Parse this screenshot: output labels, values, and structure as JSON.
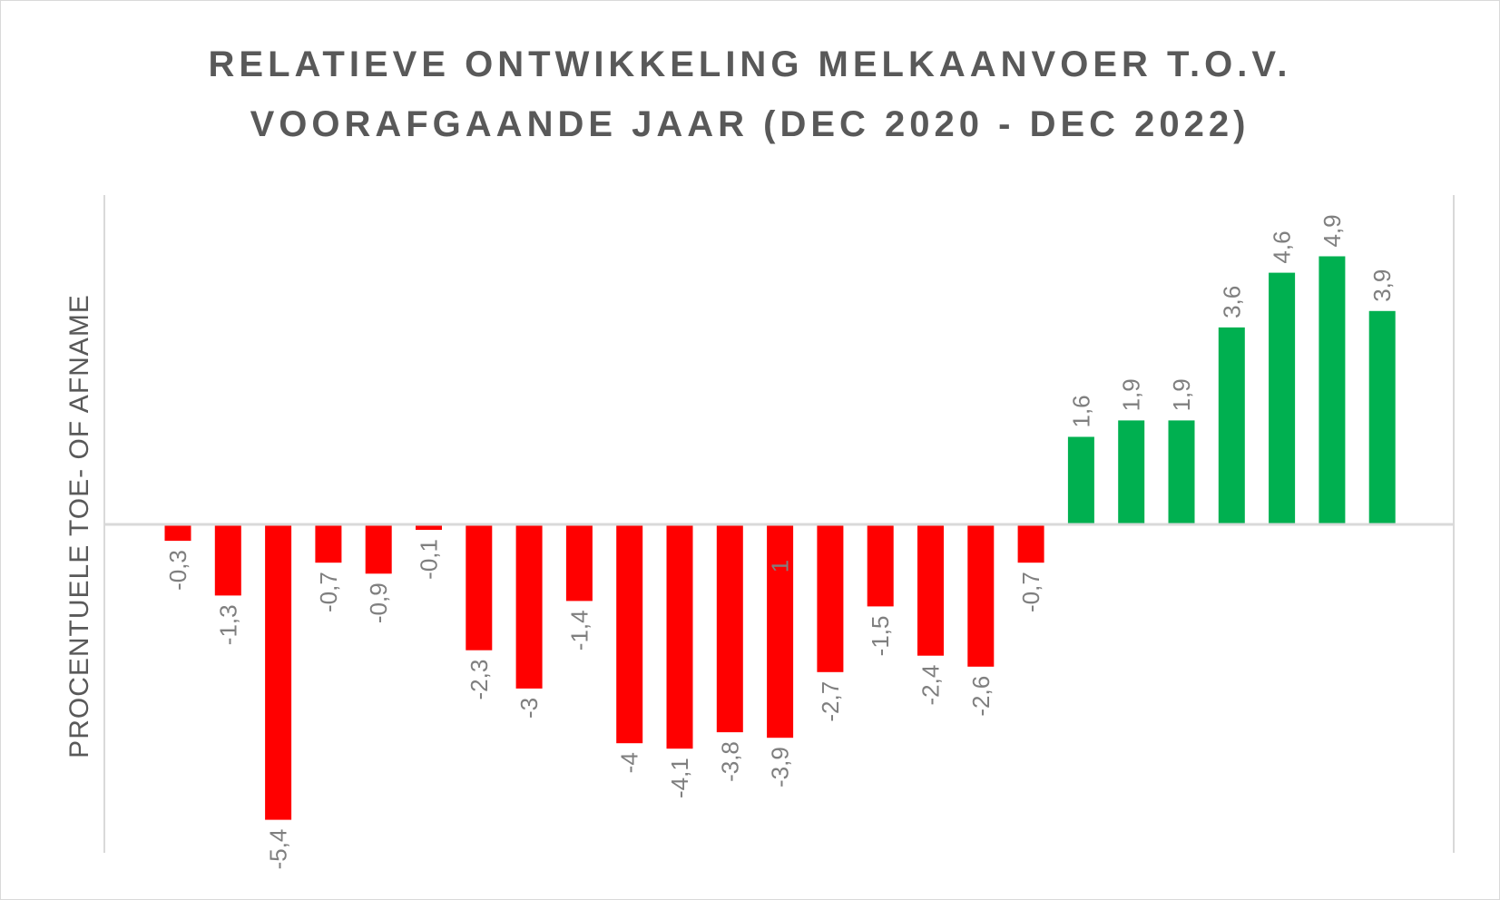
{
  "chart_data": {
    "type": "bar",
    "title_lines": [
      "RELATIEVE ONTWIKKELING MELKAANVOER T.O.V.",
      "VOORAFGAANDE JAAR (DEC 2020 - DEC 2022)"
    ],
    "xlabel": "",
    "ylabel": "PROCENTUELE TOE- OF AFNAME",
    "values": [
      -0.3,
      -1.3,
      -5.4,
      -0.7,
      -0.9,
      -0.1,
      -2.3,
      -3,
      -1.4,
      -4,
      -4.1,
      -3.8,
      -3.9,
      -2.7,
      -1.5,
      -2.4,
      -2.6,
      -0.7,
      1.6,
      1.9,
      1.9,
      3.6,
      4.6,
      4.9,
      3.9
    ],
    "labels": [
      "-0,3",
      "-1,3",
      "-5,4",
      "-0,7",
      "-0,9",
      "-0,1",
      "-2,3",
      "-3",
      "-1,4",
      "-4",
      "-4,1",
      "-3,8",
      "-3,9",
      "-2,7",
      "-1,5",
      "-2,4",
      "-2,6",
      "-0,7",
      "1,6",
      "1,9",
      "1,9",
      "3,6",
      "4,6",
      "4,9",
      "3,9"
    ],
    "ylim": [
      -5.5,
      6
    ],
    "grid": false,
    "negative_color": "#ff0000",
    "positive_color": "#00b050",
    "label_color": "#7f7f7f",
    "stray_label": "1"
  }
}
